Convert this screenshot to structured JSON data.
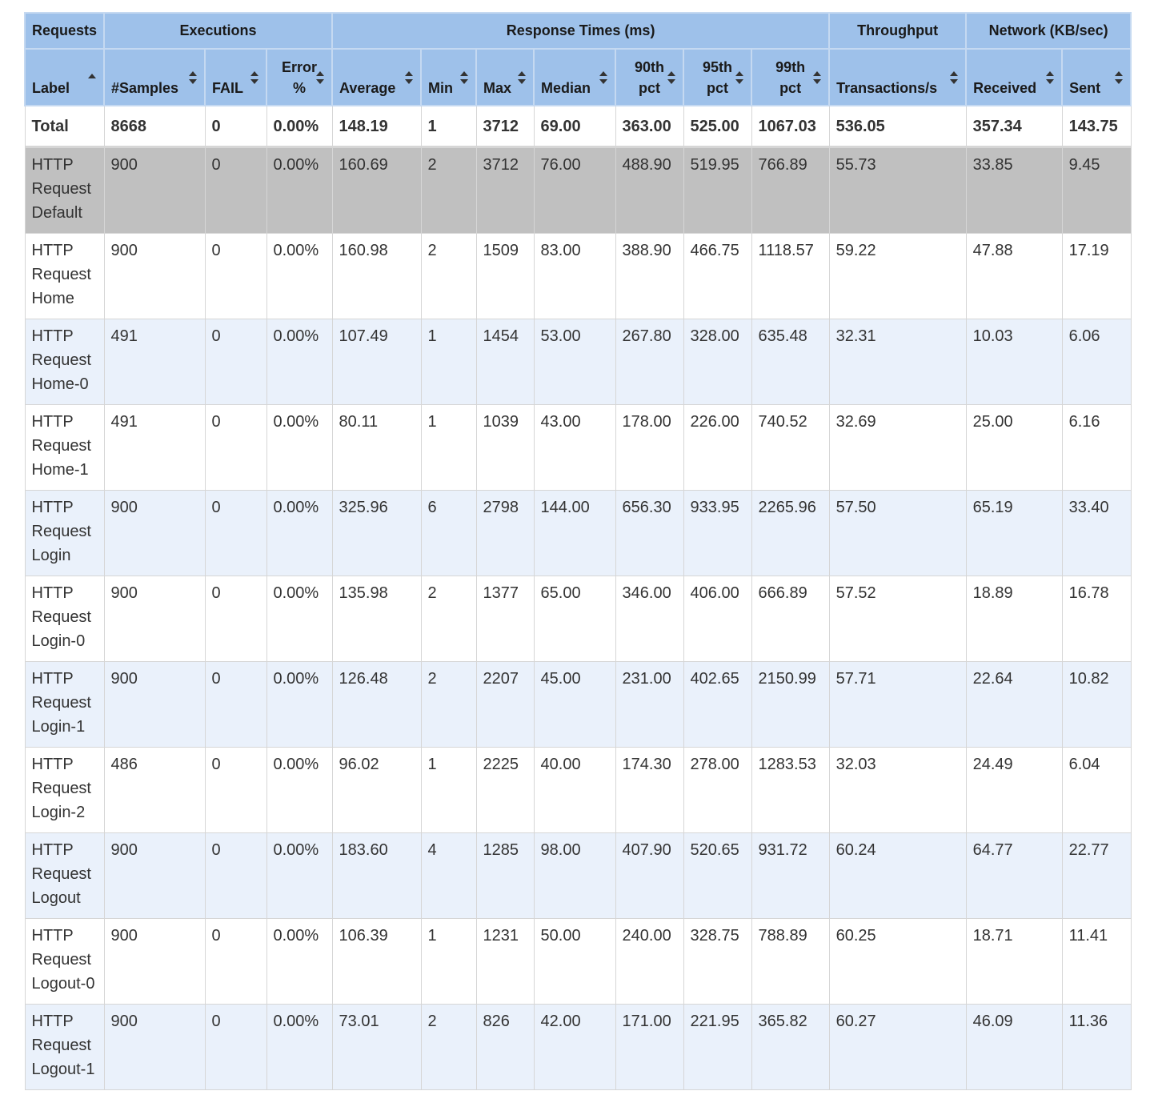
{
  "groups": {
    "requests": "Requests",
    "executions": "Executions",
    "response_times": "Response Times (ms)",
    "throughput": "Throughput",
    "network": "Network (KB/sec)"
  },
  "columns": {
    "label": "Label",
    "samples": "#Samples",
    "fail": "FAIL",
    "error_1": "Error",
    "error_2": "%",
    "average": "Average",
    "min": "Min",
    "max": "Max",
    "median": "Median",
    "p90_1": "90th",
    "p90_2": "pct",
    "p95_1": "95th",
    "p95_2": "pct",
    "p99_1": "99th",
    "p99_2": "pct",
    "tps": "Transactions/s",
    "received": "Received",
    "sent": "Sent"
  },
  "total": [
    "Total",
    "8668",
    "0",
    "0.00%",
    "148.19",
    "1",
    "3712",
    "69.00",
    "363.00",
    "525.00",
    "1067.03",
    "536.05",
    "357.34",
    "143.75"
  ],
  "rows": [
    [
      "HTTP Request Default",
      "900",
      "0",
      "0.00%",
      "160.69",
      "2",
      "3712",
      "76.00",
      "488.90",
      "519.95",
      "766.89",
      "55.73",
      "33.85",
      "9.45"
    ],
    [
      "HTTP Request Home",
      "900",
      "0",
      "0.00%",
      "160.98",
      "2",
      "1509",
      "83.00",
      "388.90",
      "466.75",
      "1118.57",
      "59.22",
      "47.88",
      "17.19"
    ],
    [
      "HTTP Request Home-0",
      "491",
      "0",
      "0.00%",
      "107.49",
      "1",
      "1454",
      "53.00",
      "267.80",
      "328.00",
      "635.48",
      "32.31",
      "10.03",
      "6.06"
    ],
    [
      "HTTP Request Home-1",
      "491",
      "0",
      "0.00%",
      "80.11",
      "1",
      "1039",
      "43.00",
      "178.00",
      "226.00",
      "740.52",
      "32.69",
      "25.00",
      "6.16"
    ],
    [
      "HTTP Request Login",
      "900",
      "0",
      "0.00%",
      "325.96",
      "6",
      "2798",
      "144.00",
      "656.30",
      "933.95",
      "2265.96",
      "57.50",
      "65.19",
      "33.40"
    ],
    [
      "HTTP Request Login-0",
      "900",
      "0",
      "0.00%",
      "135.98",
      "2",
      "1377",
      "65.00",
      "346.00",
      "406.00",
      "666.89",
      "57.52",
      "18.89",
      "16.78"
    ],
    [
      "HTTP Request Login-1",
      "900",
      "0",
      "0.00%",
      "126.48",
      "2",
      "2207",
      "45.00",
      "231.00",
      "402.65",
      "2150.99",
      "57.71",
      "22.64",
      "10.82"
    ],
    [
      "HTTP Request Login-2",
      "486",
      "0",
      "0.00%",
      "96.02",
      "1",
      "2225",
      "40.00",
      "174.30",
      "278.00",
      "1283.53",
      "32.03",
      "24.49",
      "6.04"
    ],
    [
      "HTTP Request Logout",
      "900",
      "0",
      "0.00%",
      "183.60",
      "4",
      "1285",
      "98.00",
      "407.90",
      "520.65",
      "931.72",
      "60.24",
      "64.77",
      "22.77"
    ],
    [
      "HTTP Request Logout-0",
      "900",
      "0",
      "0.00%",
      "106.39",
      "1",
      "1231",
      "50.00",
      "240.00",
      "328.75",
      "788.89",
      "60.25",
      "18.71",
      "11.41"
    ],
    [
      "HTTP Request Logout-1",
      "900",
      "0",
      "0.00%",
      "73.01",
      "2",
      "826",
      "42.00",
      "171.00",
      "221.95",
      "365.82",
      "60.27",
      "46.09",
      "11.36"
    ]
  ],
  "icons": {
    "sort_ascending": "sort-ascending-icon",
    "sort_both": "sort-both-icon"
  },
  "colors": {
    "header_bg": "#9ec1ea",
    "row_odd_bg": "#eaf1fb",
    "row_highlight_bg": "#c0c0c0"
  }
}
